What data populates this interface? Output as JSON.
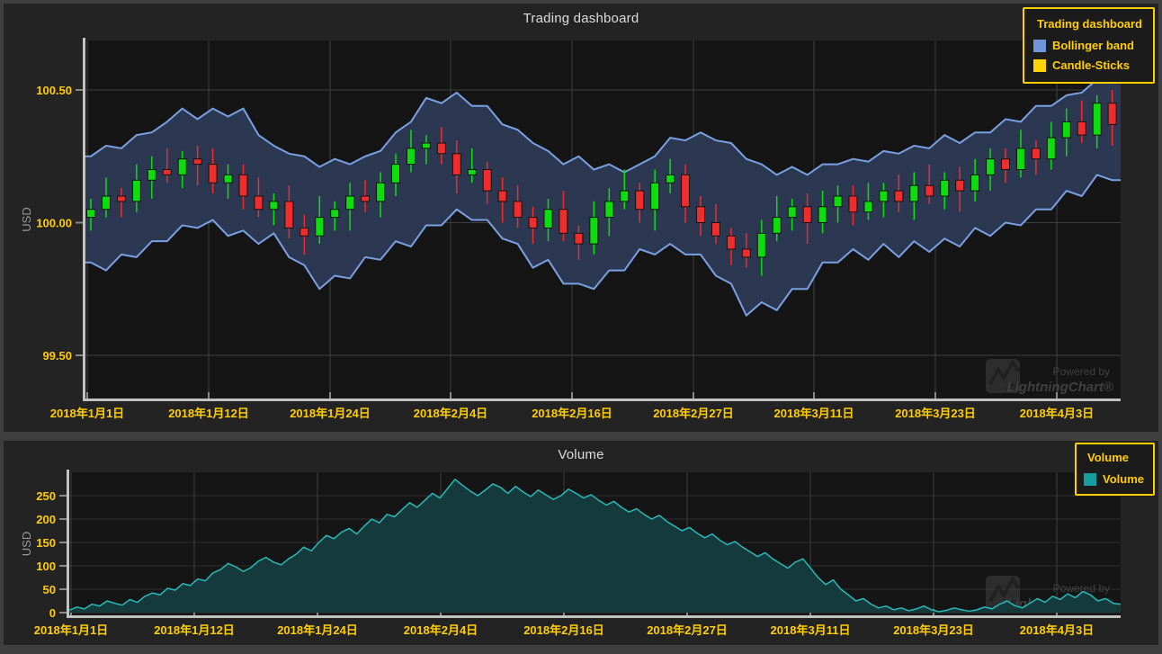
{
  "page": {
    "background": "#3f3f3f",
    "panel_background": "#232323"
  },
  "top_chart": {
    "title": "Trading dashboard",
    "y_axis_title": "USD",
    "legend": {
      "title": "Trading dashboard",
      "items": [
        {
          "label": "Bollinger band",
          "swatch": "#6e96d8"
        },
        {
          "label": "Candle-Sticks",
          "swatch": "#ffd400"
        }
      ]
    }
  },
  "bottom_chart": {
    "title": "Volume",
    "y_axis_title": "USD",
    "legend": {
      "title": "Volume",
      "items": [
        {
          "label": "Volume",
          "swatch": "#169e9e"
        }
      ]
    }
  },
  "watermark": {
    "powered_by": "Powered by",
    "brand": "LightningChart®",
    "logo_text": "JS"
  },
  "colors": {
    "tick_label": "#ffcd00",
    "axis_line": "#c2c2c2",
    "tick_mark": "#8a8a8a",
    "grid": "#3e3e3e",
    "grid_faint": "#2f2f2f",
    "plot_bg": "#151515",
    "band_fill": "#2c3852",
    "band_line": "#7aa0e4",
    "candle_up": "#0ddd0d",
    "candle_down": "#ef2d2d",
    "volume_line": "#27b9b9",
    "volume_fill": "#143a3c",
    "watermark": "#6a6a6a"
  },
  "chart_data": [
    {
      "type": "candlestick",
      "title": "Trading dashboard",
      "ylabel": "USD",
      "ylim": [
        99.34,
        100.69
      ],
      "grid": true,
      "legend_position": "top-right",
      "x_tick_labels": [
        "2018年1月1日",
        "2018年1月12日",
        "2018年1月24日",
        "2018年2月4日",
        "2018年2月16日",
        "2018年2月27日",
        "2018年3月11日",
        "2018年3月23日",
        "2018年4月3日"
      ],
      "y_tick_labels": [
        "100.50",
        "100.00",
        "99.50"
      ],
      "y_tick_values": [
        100.5,
        100.0,
        99.5
      ],
      "series": [
        {
          "name": "Bollinger band",
          "type": "band",
          "upper": [
            100.25,
            100.29,
            100.28,
            100.33,
            100.34,
            100.38,
            100.43,
            100.39,
            100.43,
            100.4,
            100.43,
            100.33,
            100.29,
            100.26,
            100.25,
            100.21,
            100.24,
            100.22,
            100.25,
            100.27,
            100.34,
            100.38,
            100.47,
            100.45,
            100.49,
            100.44,
            100.44,
            100.37,
            100.35,
            100.3,
            100.27,
            100.22,
            100.25,
            100.2,
            100.22,
            100.19,
            100.22,
            100.25,
            100.32,
            100.31,
            100.34,
            100.31,
            100.3,
            100.24,
            100.22,
            100.18,
            100.21,
            100.18,
            100.22,
            100.22,
            100.24,
            100.23,
            100.27,
            100.26,
            100.29,
            100.28,
            100.33,
            100.3,
            100.34,
            100.34,
            100.39,
            100.38,
            100.44,
            100.44,
            100.48,
            100.49,
            100.54,
            100.55
          ],
          "lower": [
            99.85,
            99.82,
            99.88,
            99.87,
            99.93,
            99.93,
            99.99,
            99.98,
            100.01,
            99.95,
            99.97,
            99.92,
            99.96,
            99.87,
            99.84,
            99.75,
            99.8,
            99.79,
            99.87,
            99.86,
            99.93,
            99.91,
            99.99,
            99.99,
            100.05,
            100.01,
            100.01,
            99.94,
            99.92,
            99.83,
            99.86,
            99.77,
            99.77,
            99.75,
            99.82,
            99.82,
            99.9,
            99.88,
            99.92,
            99.88,
            99.88,
            99.8,
            99.77,
            99.65,
            99.7,
            99.67,
            99.75,
            99.75,
            99.85,
            99.85,
            99.9,
            99.86,
            99.92,
            99.87,
            99.93,
            99.89,
            99.94,
            99.91,
            99.98,
            99.95,
            100.0,
            99.99,
            100.05,
            100.05,
            100.12,
            100.1,
            100.18,
            100.16
          ]
        },
        {
          "name": "Candle-Sticks",
          "type": "ohlc",
          "candles": [
            [
              100.02,
              100.09,
              99.97,
              100.05
            ],
            [
              100.05,
              100.17,
              100.02,
              100.1
            ],
            [
              100.1,
              100.13,
              100.02,
              100.08
            ],
            [
              100.08,
              100.22,
              100.04,
              100.16
            ],
            [
              100.16,
              100.25,
              100.09,
              100.2
            ],
            [
              100.2,
              100.28,
              100.15,
              100.18
            ],
            [
              100.18,
              100.27,
              100.13,
              100.24
            ],
            [
              100.24,
              100.29,
              100.14,
              100.22
            ],
            [
              100.22,
              100.28,
              100.11,
              100.15
            ],
            [
              100.15,
              100.22,
              100.09,
              100.18
            ],
            [
              100.18,
              100.22,
              100.05,
              100.1
            ],
            [
              100.1,
              100.17,
              100.02,
              100.05
            ],
            [
              100.05,
              100.11,
              99.99,
              100.08
            ],
            [
              100.08,
              100.14,
              99.94,
              99.98
            ],
            [
              99.98,
              100.03,
              99.88,
              99.95
            ],
            [
              99.95,
              100.1,
              99.92,
              100.02
            ],
            [
              100.02,
              100.08,
              99.97,
              100.05
            ],
            [
              100.05,
              100.15,
              99.97,
              100.1
            ],
            [
              100.1,
              100.16,
              100.04,
              100.08
            ],
            [
              100.08,
              100.19,
              100.02,
              100.15
            ],
            [
              100.15,
              100.26,
              100.1,
              100.22
            ],
            [
              100.22,
              100.35,
              100.19,
              100.28
            ],
            [
              100.28,
              100.33,
              100.22,
              100.3
            ],
            [
              100.3,
              100.36,
              100.22,
              100.26
            ],
            [
              100.26,
              100.31,
              100.11,
              100.18
            ],
            [
              100.18,
              100.28,
              100.15,
              100.2
            ],
            [
              100.2,
              100.23,
              100.07,
              100.12
            ],
            [
              100.12,
              100.17,
              100.0,
              100.08
            ],
            [
              100.08,
              100.14,
              99.98,
              100.02
            ],
            [
              100.02,
              100.06,
              99.92,
              99.98
            ],
            [
              99.98,
              100.09,
              99.93,
              100.05
            ],
            [
              100.05,
              100.12,
              99.93,
              99.96
            ],
            [
              99.96,
              99.99,
              99.86,
              99.92
            ],
            [
              99.92,
              100.08,
              99.88,
              100.02
            ],
            [
              100.02,
              100.13,
              99.95,
              100.08
            ],
            [
              100.08,
              100.2,
              100.05,
              100.12
            ],
            [
              100.12,
              100.15,
              100.0,
              100.05
            ],
            [
              100.05,
              100.2,
              99.97,
              100.15
            ],
            [
              100.15,
              100.24,
              100.11,
              100.18
            ],
            [
              100.18,
              100.22,
              100.0,
              100.06
            ],
            [
              100.06,
              100.1,
              99.95,
              100.0
            ],
            [
              100.0,
              100.07,
              99.92,
              99.95
            ],
            [
              99.95,
              99.98,
              99.84,
              99.9
            ],
            [
              99.9,
              99.96,
              99.83,
              99.87
            ],
            [
              99.87,
              100.01,
              99.8,
              99.96
            ],
            [
              99.96,
              100.1,
              99.93,
              100.02
            ],
            [
              100.02,
              100.09,
              99.97,
              100.06
            ],
            [
              100.06,
              100.11,
              99.92,
              100.0
            ],
            [
              100.0,
              100.12,
              99.96,
              100.06
            ],
            [
              100.06,
              100.14,
              100.0,
              100.1
            ],
            [
              100.1,
              100.14,
              99.99,
              100.04
            ],
            [
              100.04,
              100.15,
              100.01,
              100.08
            ],
            [
              100.08,
              100.15,
              100.02,
              100.12
            ],
            [
              100.12,
              100.18,
              100.04,
              100.08
            ],
            [
              100.08,
              100.19,
              100.01,
              100.14
            ],
            [
              100.14,
              100.22,
              100.07,
              100.1
            ],
            [
              100.1,
              100.19,
              100.05,
              100.16
            ],
            [
              100.16,
              100.21,
              100.04,
              100.12
            ],
            [
              100.12,
              100.24,
              100.08,
              100.18
            ],
            [
              100.18,
              100.28,
              100.12,
              100.24
            ],
            [
              100.24,
              100.28,
              100.15,
              100.2
            ],
            [
              100.2,
              100.35,
              100.17,
              100.28
            ],
            [
              100.28,
              100.31,
              100.18,
              100.24
            ],
            [
              100.24,
              100.38,
              100.2,
              100.32
            ],
            [
              100.32,
              100.43,
              100.25,
              100.38
            ],
            [
              100.38,
              100.46,
              100.3,
              100.33
            ],
            [
              100.33,
              100.48,
              100.28,
              100.45
            ],
            [
              100.45,
              100.5,
              100.29,
              100.37
            ]
          ]
        }
      ]
    },
    {
      "type": "area",
      "title": "Volume",
      "ylabel": "USD",
      "ylim": [
        0,
        300
      ],
      "grid": true,
      "legend_position": "top-right",
      "x_tick_labels": [
        "2018年1月1日",
        "2018年1月12日",
        "2018年1月24日",
        "2018年2月4日",
        "2018年2月16日",
        "2018年2月27日",
        "2018年3月11日",
        "2018年3月23日",
        "2018年4月3日"
      ],
      "y_tick_labels": [
        "0",
        "50",
        "100",
        "150",
        "200",
        "250"
      ],
      "y_tick_values": [
        0,
        50,
        100,
        150,
        200,
        250
      ],
      "series": [
        {
          "name": "Volume",
          "values": [
            5,
            12,
            8,
            18,
            14,
            25,
            20,
            16,
            28,
            22,
            35,
            42,
            38,
            52,
            48,
            62,
            58,
            72,
            68,
            85,
            92,
            105,
            98,
            88,
            96,
            110,
            118,
            108,
            102,
            115,
            125,
            140,
            132,
            150,
            165,
            158,
            172,
            180,
            168,
            185,
            200,
            192,
            210,
            205,
            220,
            235,
            225,
            240,
            255,
            245,
            265,
            285,
            272,
            260,
            250,
            262,
            275,
            268,
            255,
            270,
            258,
            248,
            262,
            252,
            242,
            250,
            264,
            255,
            245,
            252,
            240,
            230,
            238,
            225,
            215,
            222,
            210,
            200,
            208,
            195,
            185,
            175,
            182,
            170,
            160,
            168,
            155,
            145,
            152,
            140,
            130,
            120,
            128,
            115,
            105,
            95,
            108,
            115,
            95,
            75,
            60,
            70,
            50,
            38,
            25,
            30,
            18,
            10,
            14,
            6,
            10,
            4,
            8,
            14,
            6,
            2,
            5,
            10,
            6,
            3,
            6,
            12,
            8,
            18,
            25,
            15,
            10,
            20,
            30,
            22,
            35,
            28,
            40,
            32,
            45,
            38,
            25,
            30,
            20,
            18
          ]
        }
      ]
    }
  ]
}
